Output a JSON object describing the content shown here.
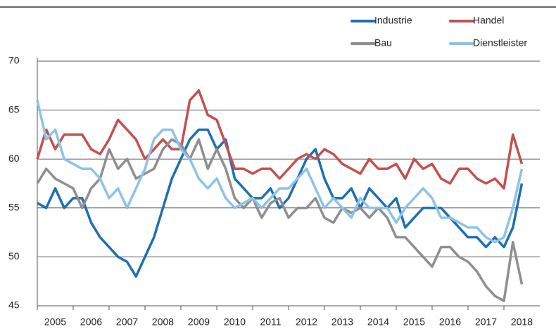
{
  "chart_data": {
    "type": "line",
    "x": [
      2005,
      2005.25,
      2005.5,
      2005.75,
      2006,
      2006.25,
      2006.5,
      2006.75,
      2007,
      2007.25,
      2007.5,
      2007.75,
      2008,
      2008.25,
      2008.5,
      2008.75,
      2009,
      2009.25,
      2009.5,
      2009.75,
      2010,
      2010.25,
      2010.5,
      2010.75,
      2011,
      2011.25,
      2011.5,
      2011.75,
      2012,
      2012.25,
      2012.5,
      2012.75,
      2013,
      2013.25,
      2013.5,
      2013.75,
      2014,
      2014.25,
      2014.5,
      2014.75,
      2015,
      2015.25,
      2015.5,
      2015.75,
      2016,
      2016.25,
      2016.5,
      2016.75,
      2017,
      2017.25,
      2017.5,
      2017.75,
      2018,
      2018.25,
      2018.5
    ],
    "series": [
      {
        "name": "Industrie",
        "color": "#1f6fb2",
        "values": [
          55.5,
          55,
          57,
          55,
          56,
          56,
          53.5,
          52,
          51,
          50,
          49.5,
          48,
          50,
          52,
          55,
          58,
          60,
          62,
          63,
          63,
          61,
          62,
          58,
          57,
          56,
          56,
          57,
          55,
          56,
          58,
          60,
          61,
          58,
          56,
          56,
          57,
          55,
          57,
          56,
          55,
          56,
          53,
          54,
          55,
          55,
          55,
          54,
          53,
          52,
          52,
          51,
          52,
          51,
          53,
          57.5
        ]
      },
      {
        "name": "Handel",
        "color": "#c4504d",
        "values": [
          60,
          63,
          61,
          62.5,
          62.5,
          62.5,
          61,
          60.5,
          62,
          64,
          63,
          62,
          60,
          61,
          62,
          61,
          61,
          66,
          67,
          64.5,
          64,
          61.5,
          59,
          59,
          58.5,
          59,
          59,
          58,
          59,
          60,
          60.5,
          60,
          61,
          60.5,
          59.5,
          59,
          58.5,
          60,
          59,
          59,
          59.5,
          58,
          60,
          59,
          59.5,
          58,
          57.5,
          59,
          59,
          58,
          57.5,
          58,
          57,
          62.5,
          59.5
        ]
      },
      {
        "name": "Bau",
        "color": "#8f8f8f",
        "values": [
          57.5,
          59,
          58,
          57.5,
          57,
          55,
          57,
          58,
          61,
          59,
          60,
          58,
          58.5,
          59,
          61,
          62,
          61.5,
          60,
          62,
          59,
          61,
          59,
          56,
          55,
          56,
          54,
          55.5,
          56,
          54,
          55,
          55,
          56,
          54,
          53.5,
          55,
          54.5,
          55,
          54,
          55,
          54,
          52,
          52,
          51,
          50,
          49,
          51,
          51,
          50,
          49.5,
          48.5,
          47,
          46,
          45.5,
          51.5,
          47.2
        ]
      },
      {
        "name": "Dienstleister",
        "color": "#8dc3e9",
        "values": [
          66,
          62,
          63,
          60,
          59.5,
          59,
          59,
          58,
          56,
          57,
          55,
          57,
          59,
          62,
          63,
          63,
          61,
          60,
          58,
          57,
          58,
          56,
          55,
          55.5,
          56,
          55,
          56,
          57,
          57,
          58,
          59,
          57,
          55,
          56,
          55,
          54,
          56,
          55,
          55,
          55,
          53.5,
          55,
          56,
          57,
          56,
          54,
          54,
          53.5,
          53,
          53,
          52,
          51.5,
          52,
          55,
          59
        ]
      }
    ],
    "xlim": [
      2005,
      2019
    ],
    "xticks": [
      2005,
      2006,
      2007,
      2008,
      2009,
      2010,
      2011,
      2012,
      2013,
      2014,
      2015,
      2016,
      2017,
      2018
    ],
    "ylim": [
      45,
      70
    ],
    "yticks": [
      45,
      50,
      55,
      60,
      65,
      70
    ],
    "grid": true,
    "legend": "upper right"
  }
}
